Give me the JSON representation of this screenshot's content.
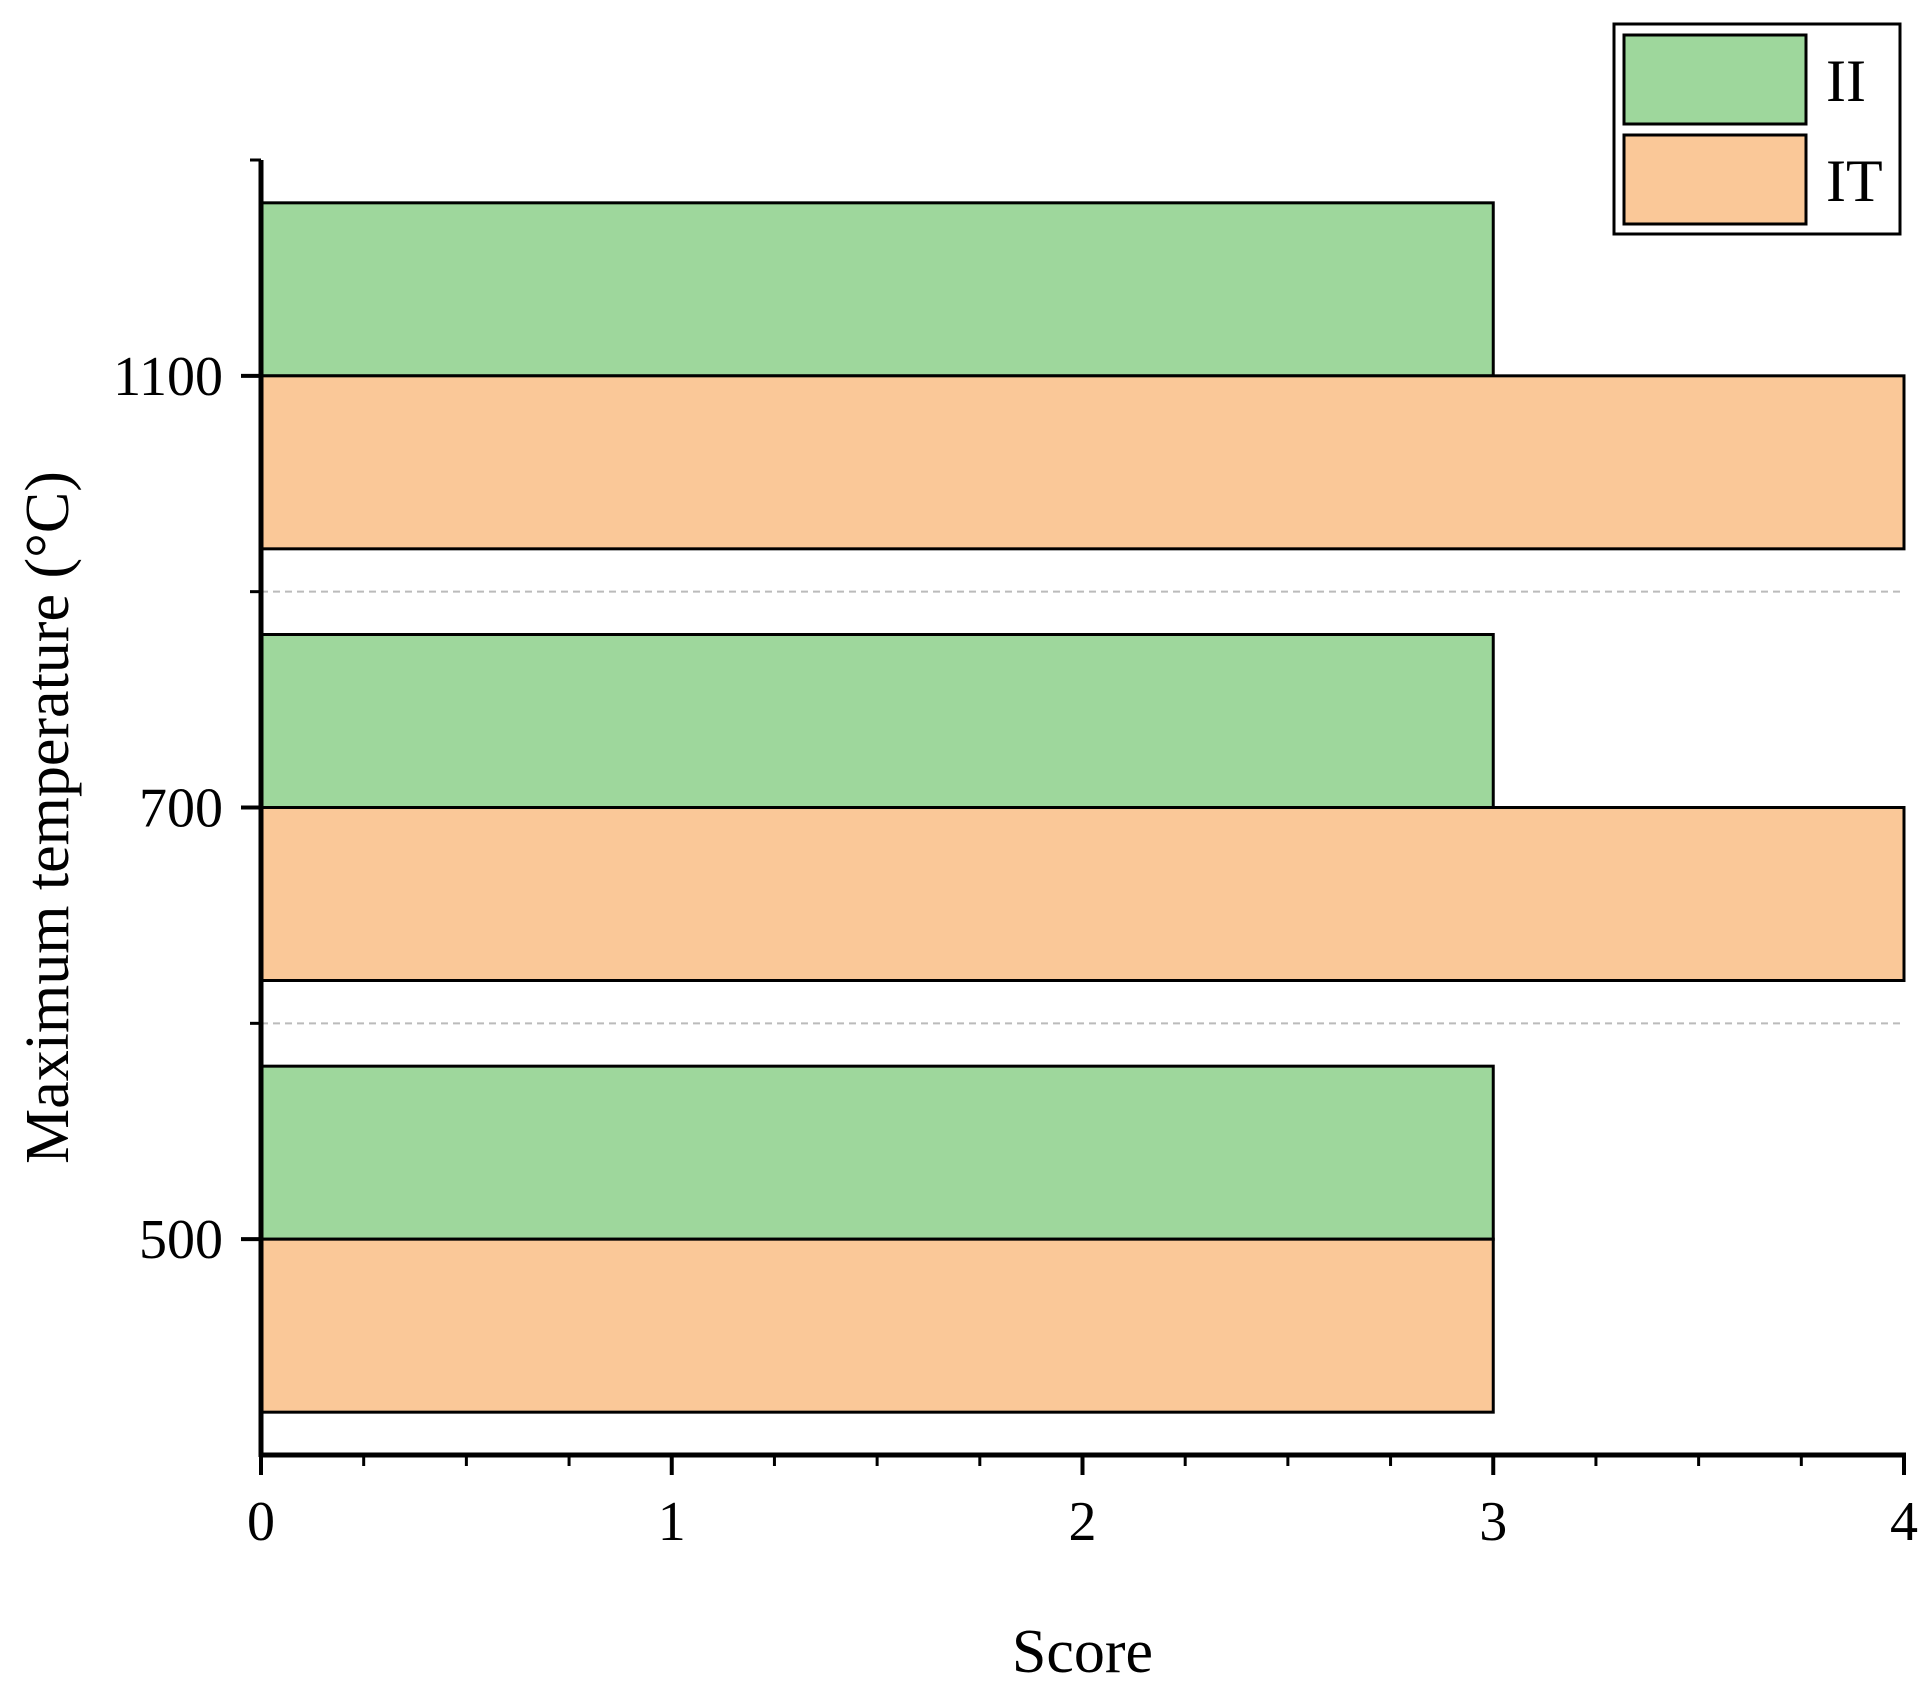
{
  "chart_data": {
    "type": "bar",
    "orientation": "horizontal",
    "title": "",
    "xlabel": "Score",
    "ylabel": "Maximum temperature (°C)",
    "categories": [
      "500",
      "700",
      "1100"
    ],
    "series": [
      {
        "name": "II",
        "values": [
          3,
          3,
          3
        ],
        "color": "#9ED79C"
      },
      {
        "name": "IT",
        "values": [
          3,
          4,
          4
        ],
        "color": "#FAC898"
      }
    ],
    "xlim": [
      0,
      4
    ],
    "x_ticks": [
      "0",
      "1",
      "2",
      "3",
      "4"
    ],
    "x_minor_ticks_per_major": 4,
    "grid": "dashed separators between categories",
    "legend_position": "top-right",
    "colors": {
      "axis": "#000000",
      "separator": "#BBBBBB",
      "bar_outline": "#000000"
    }
  }
}
